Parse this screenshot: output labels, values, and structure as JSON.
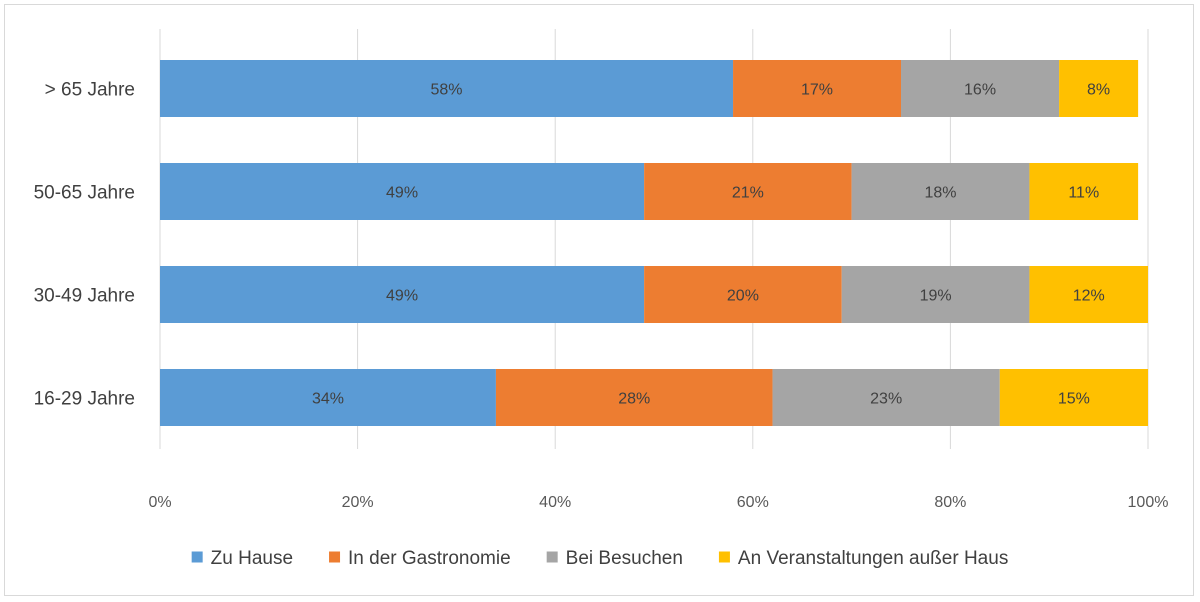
{
  "chart_data": {
    "type": "bar",
    "orientation": "horizontal",
    "stacked": "percent",
    "categories": [
      "> 65 Jahre",
      "50-65 Jahre",
      "30-49 Jahre",
      "16-29 Jahre"
    ],
    "series": [
      {
        "name": "Zu Hause",
        "color": "#5b9bd5",
        "values": [
          58,
          49,
          49,
          34
        ],
        "labels": [
          "58%",
          "49%",
          "49%",
          "34%"
        ]
      },
      {
        "name": "In der Gastronomie",
        "color": "#ed7d31",
        "values": [
          17,
          21,
          20,
          28
        ],
        "labels": [
          "17%",
          "21%",
          "20%",
          "28%"
        ]
      },
      {
        "name": "Bei Besuchen",
        "color": "#a5a5a5",
        "values": [
          16,
          18,
          19,
          23
        ],
        "labels": [
          "16%",
          "18%",
          "19%",
          "23%"
        ]
      },
      {
        "name": "An Veranstaltungen außer Haus",
        "color": "#ffc000",
        "values": [
          8,
          11,
          12,
          15
        ],
        "labels": [
          "8%",
          "11%",
          "12%",
          "15%"
        ]
      }
    ],
    "xlim": [
      0,
      100
    ],
    "xticks": [
      0,
      20,
      40,
      60,
      80,
      100
    ],
    "xtick_labels": [
      "0%",
      "20%",
      "40%",
      "60%",
      "80%",
      "100%"
    ],
    "grid": true,
    "legend_position": "bottom",
    "title": "",
    "xlabel": "",
    "ylabel": ""
  }
}
